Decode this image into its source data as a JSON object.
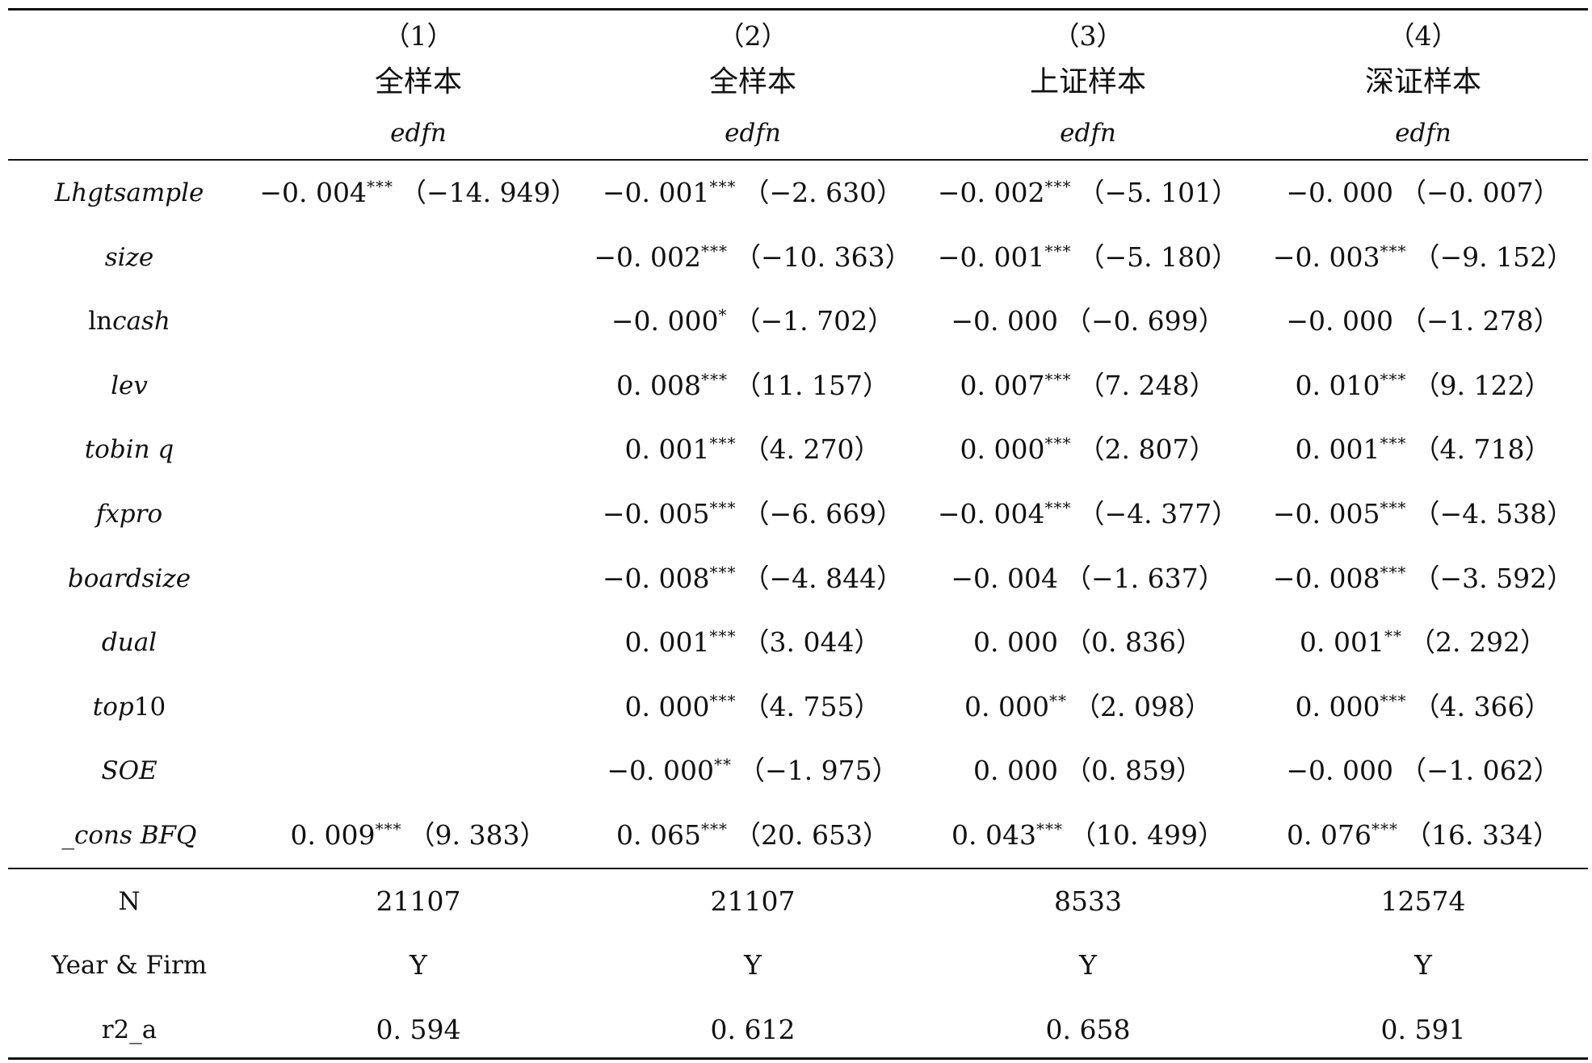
{
  "columns": [
    {
      "num": "（1）",
      "name": "全样本",
      "dep": "edfn"
    },
    {
      "num": "（2）",
      "name": "全样本",
      "dep": "edfn"
    },
    {
      "num": "（3）",
      "name": "上证样本",
      "dep": "edfn"
    },
    {
      "num": "（4）",
      "name": "深证样本",
      "dep": "edfn"
    }
  ],
  "rows": [
    {
      "var": "Lhgtsample",
      "italic": true,
      "cells": [
        {
          "coef": "−0. 004",
          "stars": "***",
          "t": "（−14. 949）"
        },
        {
          "coef": "−0. 001",
          "stars": "***",
          "t": "（−2. 630）"
        },
        {
          "coef": "−0. 002",
          "stars": "***",
          "t": "（−5. 101）"
        },
        {
          "coef": "−0. 000",
          "stars": "",
          "t": "（−0. 007）"
        }
      ]
    },
    {
      "var": "size",
      "italic": true,
      "cells": [
        null,
        {
          "coef": "−0. 002",
          "stars": "***",
          "t": "（−10. 363）"
        },
        {
          "coef": "−0. 001",
          "stars": "***",
          "t": "（−5. 180）"
        },
        {
          "coef": "−0. 003",
          "stars": "***",
          "t": "（−9. 152）"
        }
      ]
    },
    {
      "var_prefix": "ln",
      "var": "cash",
      "italic": true,
      "cells": [
        null,
        {
          "coef": "−0. 000",
          "stars": "*",
          "t": "（−1. 702）"
        },
        {
          "coef": "−0. 000",
          "stars": "",
          "t": "（−0. 699）"
        },
        {
          "coef": "−0. 000",
          "stars": "",
          "t": "（−1. 278）"
        }
      ]
    },
    {
      "var": "lev",
      "italic": true,
      "cells": [
        null,
        {
          "coef": "0. 008",
          "stars": "***",
          "t": "（11. 157）"
        },
        {
          "coef": "0. 007",
          "stars": "***",
          "t": "（7. 248）"
        },
        {
          "coef": "0. 010",
          "stars": "***",
          "t": "（9. 122）"
        }
      ]
    },
    {
      "var": "tobin q",
      "italic": true,
      "cells": [
        null,
        {
          "coef": "0. 001",
          "stars": "***",
          "t": "（4. 270）"
        },
        {
          "coef": "0. 000",
          "stars": "***",
          "t": "（2. 807）"
        },
        {
          "coef": "0. 001",
          "stars": "***",
          "t": "（4. 718）"
        }
      ]
    },
    {
      "var": "fxpro",
      "italic": true,
      "cells": [
        null,
        {
          "coef": "−0. 005",
          "stars": "***",
          "t": "（−6. 669）"
        },
        {
          "coef": "−0. 004",
          "stars": "***",
          "t": "（−4. 377）"
        },
        {
          "coef": "−0. 005",
          "stars": "***",
          "t": "（−4. 538）"
        }
      ]
    },
    {
      "var": "boardsize",
      "italic": true,
      "cells": [
        null,
        {
          "coef": "−0. 008",
          "stars": "***",
          "t": "（−4. 844）"
        },
        {
          "coef": "−0. 004",
          "stars": "",
          "t": "（−1. 637）"
        },
        {
          "coef": "−0. 008",
          "stars": "***",
          "t": "（−3. 592）"
        }
      ]
    },
    {
      "var": "dual",
      "italic": true,
      "cells": [
        null,
        {
          "coef": "0. 001",
          "stars": "***",
          "t": "（3. 044）"
        },
        {
          "coef": "0. 000",
          "stars": "",
          "t": "（0. 836）"
        },
        {
          "coef": "0. 001",
          "stars": "**",
          "t": "（2. 292）"
        }
      ]
    },
    {
      "var": "top",
      "var_suffix": "10",
      "italic": true,
      "cells": [
        null,
        {
          "coef": "0. 000",
          "stars": "***",
          "t": "（4. 755）"
        },
        {
          "coef": "0. 000",
          "stars": "**",
          "t": "（2. 098）"
        },
        {
          "coef": "0. 000",
          "stars": "***",
          "t": "（4. 366）"
        }
      ]
    },
    {
      "var": "SOE",
      "italic": true,
      "cells": [
        null,
        {
          "coef": "−0. 000",
          "stars": "**",
          "t": "（−1. 975）"
        },
        {
          "coef": "0. 000",
          "stars": "",
          "t": "（0. 859）"
        },
        {
          "coef": "−0. 000",
          "stars": "",
          "t": "（−1. 062）"
        }
      ]
    },
    {
      "var": "_cons BFQ",
      "italic": true,
      "cells": [
        {
          "coef": "0. 009",
          "stars": "***",
          "t": "（9. 383）"
        },
        {
          "coef": "0. 065",
          "stars": "***",
          "t": "（20. 653）"
        },
        {
          "coef": "0. 043",
          "stars": "***",
          "t": "（10. 499）"
        },
        {
          "coef": "0. 076",
          "stars": "***",
          "t": "（16. 334）"
        }
      ]
    }
  ],
  "stats": [
    {
      "label": "N",
      "values": [
        "21107",
        "21107",
        "8533",
        "12574"
      ]
    },
    {
      "label": "Year & Firm",
      "values": [
        "Y",
        "Y",
        "Y",
        "Y"
      ]
    },
    {
      "label": "r2_a",
      "values": [
        "0. 594",
        "0. 612",
        "0. 658",
        "0. 591"
      ]
    }
  ]
}
